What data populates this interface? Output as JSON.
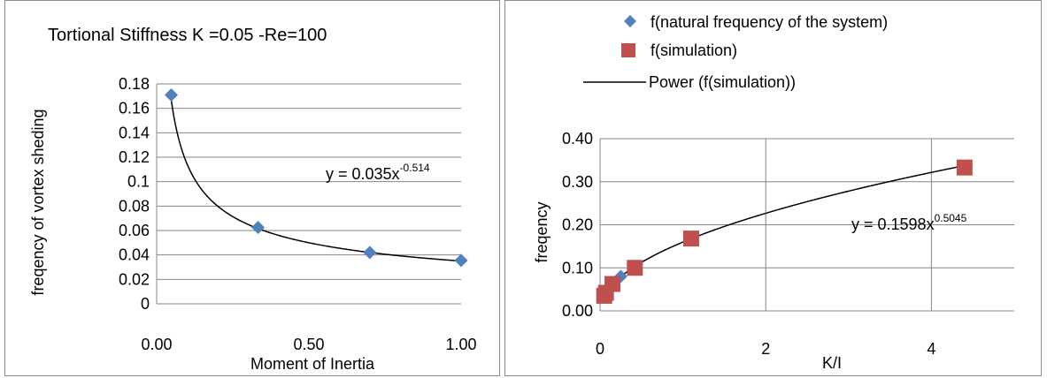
{
  "chart_data": [
    {
      "type": "scatter",
      "title": "Tortional Stiffness K =0.05 -Re=100",
      "xlabel": "Moment of Inertia",
      "ylabel": "freqency of vortex sheding",
      "xlim": [
        0,
        1
      ],
      "ylim": [
        0,
        0.18
      ],
      "xticks": [
        "0.00",
        "0.50",
        "1.00"
      ],
      "yticks": [
        "0",
        "0.02",
        "0.04",
        "0.06",
        "0.08",
        "0.1",
        "0.12",
        "0.14",
        "0.16",
        "0.18"
      ],
      "grid": true,
      "series": [
        {
          "values": [
            [
              0.048,
              0.171
            ],
            [
              0.333,
              0.0625
            ],
            [
              0.7,
              0.042
            ],
            [
              1.0,
              0.0355
            ]
          ],
          "color": "#4f81bd",
          "marker": "diamond"
        }
      ],
      "trendline": {
        "type": "power",
        "a": 0.035,
        "b": -0.514
      },
      "annotation": {
        "prefix": "y = 0.035x",
        "exponent": "-0.514"
      }
    },
    {
      "type": "scatter",
      "title": "",
      "xlabel": "K/I",
      "ylabel": "freqency",
      "xlim": [
        0,
        5
      ],
      "ylim": [
        0,
        0.4
      ],
      "xticks": [
        "0",
        "2",
        "4"
      ],
      "yticks": [
        "0.00",
        "0.10",
        "0.20",
        "0.30",
        "0.40"
      ],
      "grid": true,
      "legend_position": "top",
      "series": [
        {
          "name": "f(natural frequency of the system)",
          "values": [
            [
              0.05,
              0.035
            ],
            [
              0.071,
              0.042
            ],
            [
              0.15,
              0.0625
            ],
            [
              0.25,
              0.08
            ]
          ],
          "color": "#4f81bd",
          "marker": "diamond"
        },
        {
          "name": "f(simulation)",
          "values": [
            [
              0.05,
              0.035
            ],
            [
              0.071,
              0.042
            ],
            [
              0.15,
              0.0625
            ],
            [
              0.42,
              0.1
            ],
            [
              1.1,
              0.168
            ],
            [
              4.4,
              0.333
            ]
          ],
          "color": "#c0504d",
          "marker": "square"
        }
      ],
      "trendline": {
        "name": "Power (f(simulation))",
        "type": "power",
        "a": 0.1598,
        "b": 0.5045
      },
      "annotation": {
        "prefix": "y = 0.1598x",
        "exponent": "0.5045"
      }
    }
  ]
}
